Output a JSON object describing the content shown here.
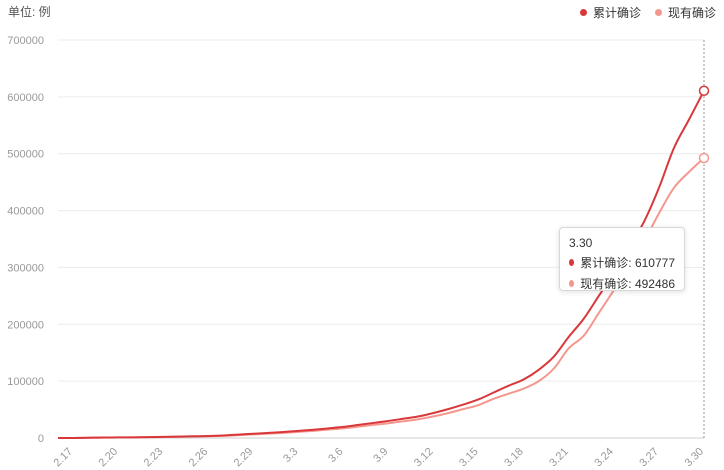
{
  "unit_label": "单位: 例",
  "colors": {
    "cumulative": "#d9383a",
    "current": "#f4978e",
    "grid": "#ececec",
    "axis_text": "#999999"
  },
  "tooltip": {
    "date": "3.30",
    "rows": [
      {
        "label": "累计确诊: 610777",
        "color": "#d9383a"
      },
      {
        "label": "现有确诊: 492486",
        "color": "#f4978e"
      }
    ]
  },
  "chart_data": {
    "type": "line",
    "title": "",
    "xlabel": "",
    "ylabel": "",
    "ylim": [
      0,
      700000
    ],
    "yticks": [
      0,
      100000,
      200000,
      300000,
      400000,
      500000,
      600000,
      700000
    ],
    "grid": true,
    "legend_position": "top-right",
    "x": [
      "2.16",
      "2.17",
      "2.18",
      "2.19",
      "2.20",
      "2.21",
      "2.22",
      "2.23",
      "2.24",
      "2.25",
      "2.26",
      "2.27",
      "2.28",
      "2.29",
      "3.1",
      "3.2",
      "3.3",
      "3.4",
      "3.5",
      "3.6",
      "3.7",
      "3.8",
      "3.9",
      "3.10",
      "3.11",
      "3.12",
      "3.13",
      "3.14",
      "3.15",
      "3.16",
      "3.17",
      "3.18",
      "3.19",
      "3.20",
      "3.21",
      "3.22",
      "3.23",
      "3.24",
      "3.25",
      "3.26",
      "3.27",
      "3.28",
      "3.29",
      "3.30"
    ],
    "x_tick_labels": [
      "2.17",
      "2.20",
      "2.23",
      "2.26",
      "2.29",
      "3.3",
      "3.6",
      "3.9",
      "3.12",
      "3.15",
      "3.18",
      "3.21",
      "3.24",
      "3.27",
      "3.30"
    ],
    "series": [
      {
        "name": "累计确诊",
        "color": "#d9383a",
        "values": [
          0,
          0,
          500,
          800,
          1000,
          1200,
          1500,
          2000,
          2500,
          3000,
          3500,
          4500,
          6000,
          7500,
          9000,
          10500,
          12500,
          14500,
          17000,
          19500,
          23000,
          26500,
          30000,
          34000,
          38000,
          44000,
          51000,
          59000,
          68000,
          80000,
          92000,
          103000,
          120000,
          143000,
          178000,
          210000,
          250000,
          290000,
          335000,
          380000,
          440000,
          510000,
          560000,
          610777
        ]
      },
      {
        "name": "现有确诊",
        "color": "#f4978e",
        "values": [
          0,
          0,
          400,
          600,
          800,
          1000,
          1300,
          1700,
          2100,
          2600,
          3000,
          3800,
          5000,
          6300,
          7600,
          9000,
          10800,
          12600,
          14800,
          17000,
          20000,
          23000,
          26000,
          29500,
          33000,
          38000,
          44000,
          51000,
          58000,
          69000,
          78000,
          87000,
          100000,
          122000,
          158000,
          180000,
          220000,
          260000,
          300000,
          345000,
          395000,
          440000,
          468000,
          492486
        ]
      }
    ]
  }
}
